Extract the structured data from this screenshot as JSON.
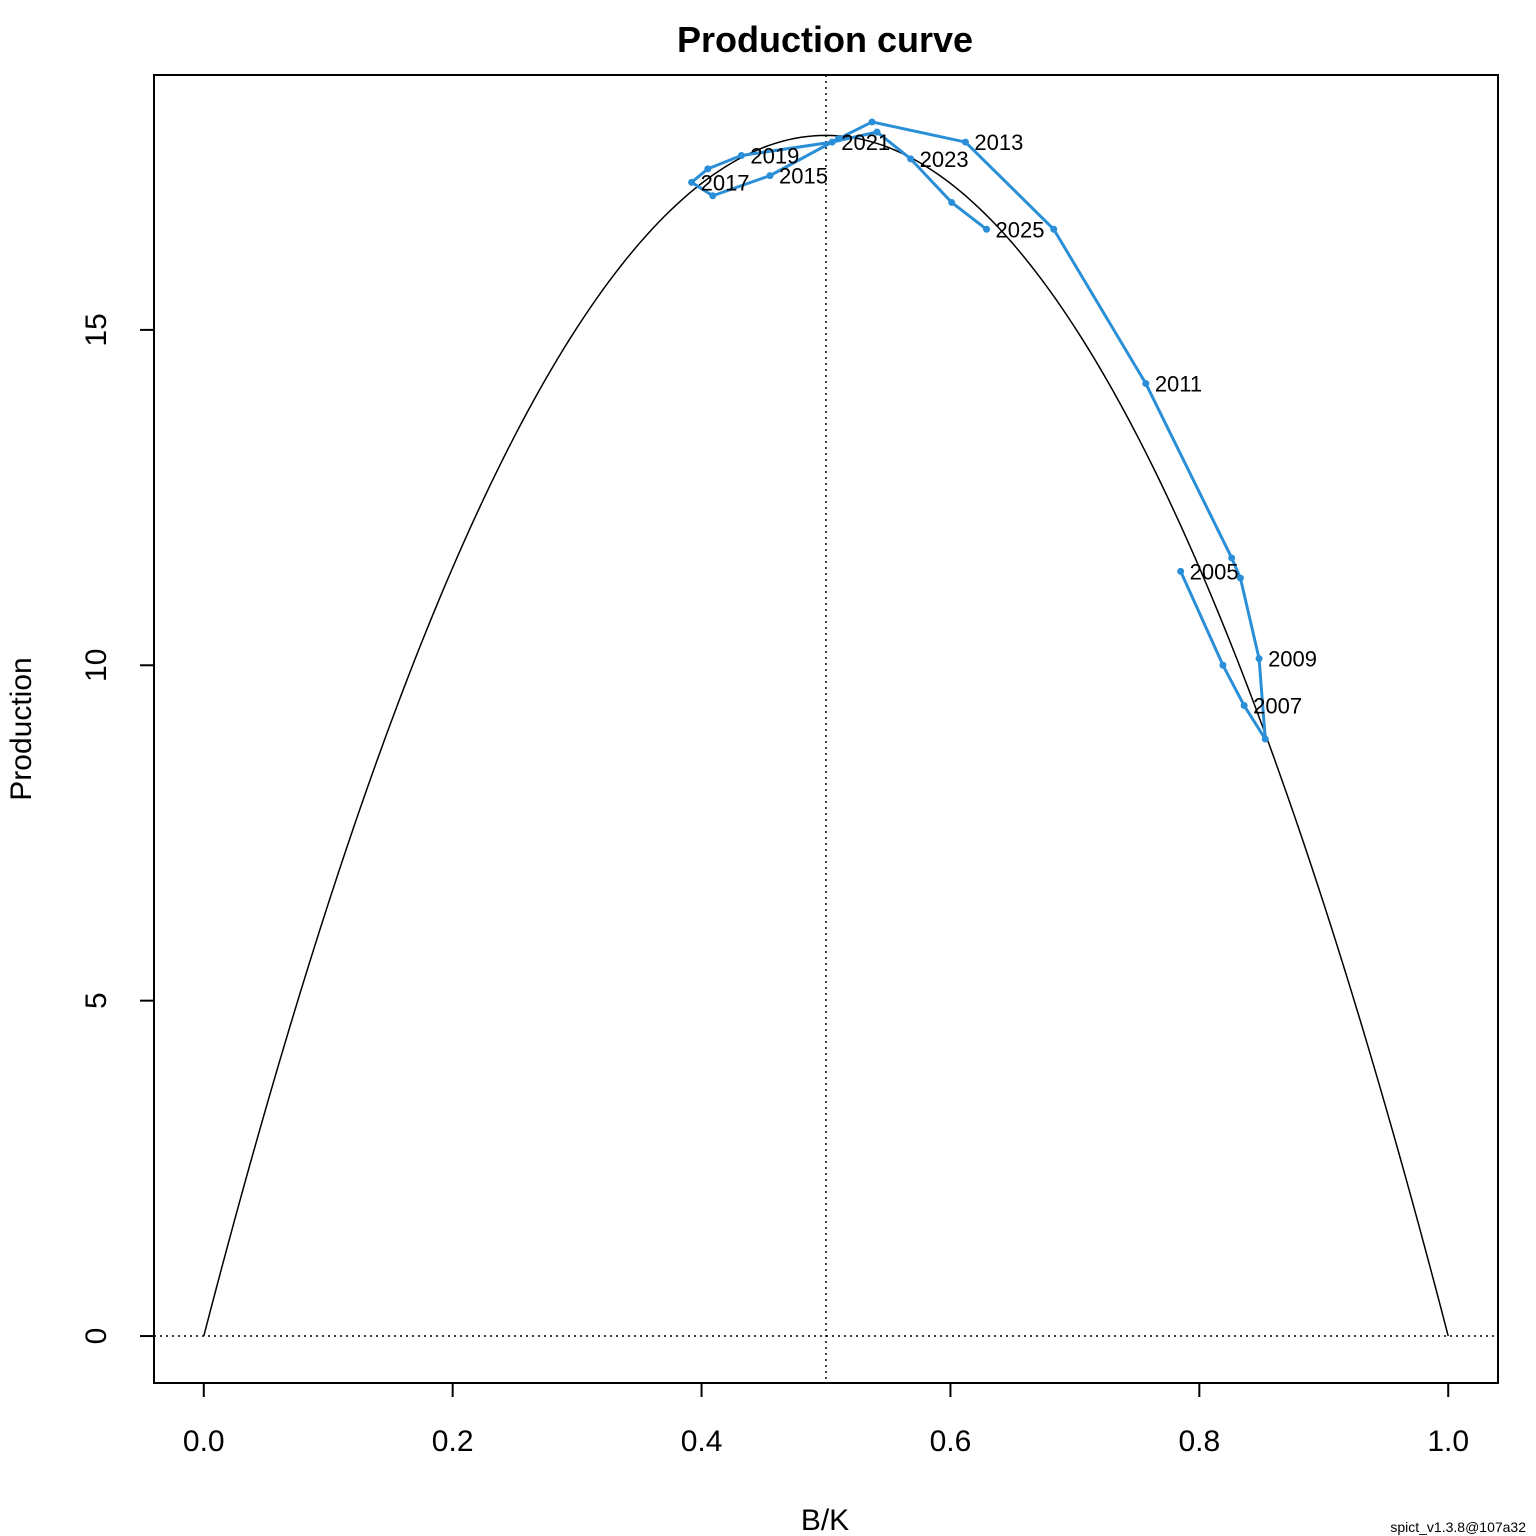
{
  "chart_data": {
    "type": "line",
    "title": "Production curve",
    "xlabel": "B/K",
    "ylabel": "Production",
    "xlim": [
      -0.04,
      1.04
    ],
    "ylim": [
      -0.7,
      18.8
    ],
    "xticks": [
      "0.0",
      "0.2",
      "0.4",
      "0.6",
      "0.8",
      "1.0"
    ],
    "xtick_values": [
      0,
      0.2,
      0.4,
      0.6,
      0.8,
      1.0
    ],
    "yticks": [
      "0",
      "5",
      "10",
      "15"
    ],
    "ytick_values": [
      0,
      5,
      10,
      15
    ],
    "reference_lines": {
      "vertical_x": 0.5,
      "horizontal_y": 0,
      "style": "dotted"
    },
    "production_curve": {
      "model": "parabola",
      "msy": 17.9,
      "bmsy_over_k": 0.5
    },
    "trajectory": {
      "color": "#2b8fd8",
      "points": [
        {
          "x": 0.785,
          "y": 11.4
        },
        {
          "x": 0.819,
          "y": 10.0
        },
        {
          "x": 0.836,
          "y": 9.4
        },
        {
          "x": 0.853,
          "y": 8.9
        },
        {
          "x": 0.848,
          "y": 10.1
        },
        {
          "x": 0.833,
          "y": 11.3
        },
        {
          "x": 0.826,
          "y": 11.6
        },
        {
          "x": 0.757,
          "y": 14.2
        },
        {
          "x": 0.683,
          "y": 16.5
        },
        {
          "x": 0.612,
          "y": 17.8
        },
        {
          "x": 0.537,
          "y": 18.1
        },
        {
          "x": 0.51,
          "y": 17.85
        },
        {
          "x": 0.455,
          "y": 17.3
        },
        {
          "x": 0.409,
          "y": 17.0
        },
        {
          "x": 0.392,
          "y": 17.2
        },
        {
          "x": 0.405,
          "y": 17.4
        },
        {
          "x": 0.432,
          "y": 17.6
        },
        {
          "x": 0.505,
          "y": 17.8
        },
        {
          "x": 0.541,
          "y": 17.95
        },
        {
          "x": 0.568,
          "y": 17.55
        },
        {
          "x": 0.601,
          "y": 16.9
        },
        {
          "x": 0.629,
          "y": 16.5
        }
      ],
      "labels": [
        {
          "text": "2005",
          "x": 0.785,
          "y": 11.4
        },
        {
          "text": "2007",
          "x": 0.836,
          "y": 9.4
        },
        {
          "text": "2009",
          "x": 0.848,
          "y": 10.1
        },
        {
          "text": "2011",
          "x": 0.757,
          "y": 14.2
        },
        {
          "text": "2013",
          "x": 0.612,
          "y": 17.8
        },
        {
          "text": "2015",
          "x": 0.455,
          "y": 17.3
        },
        {
          "text": "2017",
          "x": 0.392,
          "y": 17.2
        },
        {
          "text": "2019",
          "x": 0.432,
          "y": 17.6
        },
        {
          "text": "2021",
          "x": 0.505,
          "y": 17.8
        },
        {
          "text": "2023",
          "x": 0.568,
          "y": 17.55
        },
        {
          "text": "2025",
          "x": 0.629,
          "y": 16.5
        }
      ]
    }
  },
  "footer_text": "spict_v1.3.8@107a32"
}
